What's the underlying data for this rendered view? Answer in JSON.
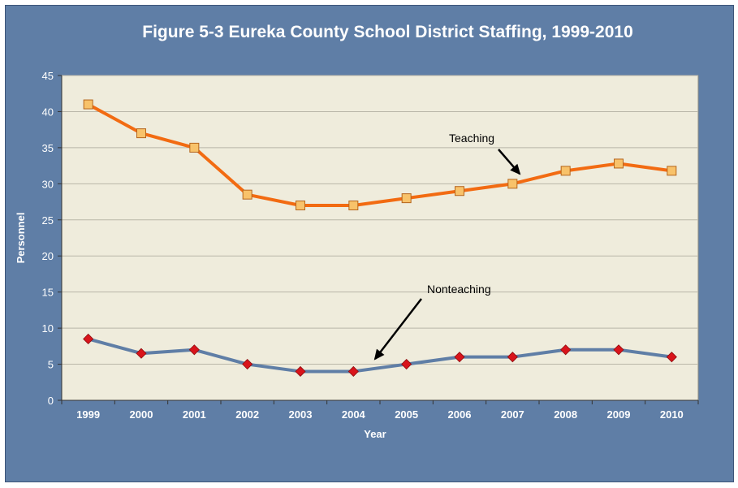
{
  "chart_data": {
    "type": "line",
    "title": "Figure 5-3  Eureka County School District Staffing, 1999-2010",
    "xlabel": "Year",
    "ylabel": "Personnel",
    "categories": [
      "1999",
      "2000",
      "2001",
      "2002",
      "2003",
      "2004",
      "2005",
      "2006",
      "2007",
      "2008",
      "2009",
      "2010"
    ],
    "ylim": [
      0,
      45
    ],
    "yticks": [
      0,
      5,
      10,
      15,
      20,
      25,
      30,
      35,
      40,
      45
    ],
    "grid": true,
    "legend": "none",
    "series": [
      {
        "name": "Teaching",
        "values": [
          41,
          37,
          35,
          28.5,
          27,
          27,
          28,
          29,
          30,
          31.8,
          32.8,
          31.8
        ],
        "line_color": "#f26b12",
        "marker": "square",
        "marker_color": "#f8c26a"
      },
      {
        "name": "Nonteaching",
        "values": [
          8.5,
          6.5,
          7,
          5,
          4,
          4,
          5,
          6,
          6,
          7,
          7,
          6
        ],
        "line_color": "#5f7ea6",
        "marker": "diamond",
        "marker_color": "#d9141b"
      }
    ],
    "annotations": [
      {
        "text": "Teaching",
        "series": "Teaching"
      },
      {
        "text": "Nonteaching",
        "series": "Nonteaching"
      }
    ],
    "colors": {
      "background": "#5f7ea6",
      "plot_area": "#efecdc",
      "gridline": "#b9b6a8"
    }
  }
}
